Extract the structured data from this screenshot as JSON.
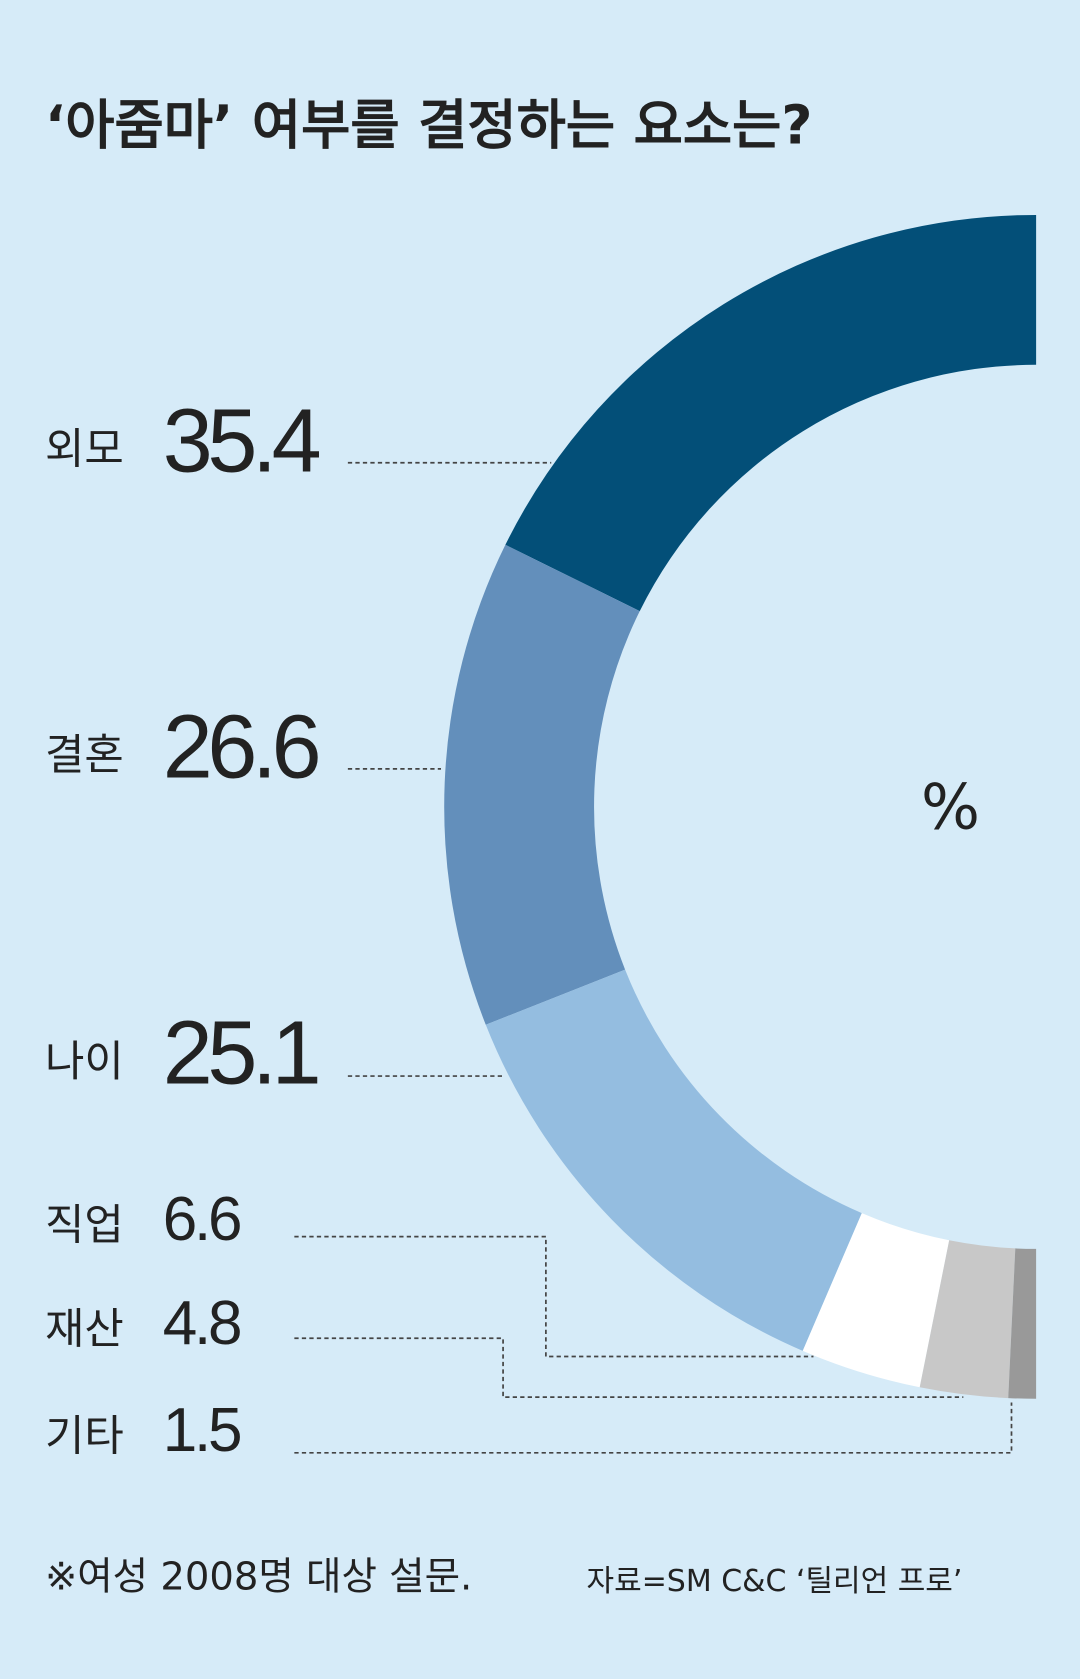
{
  "chart_data": {
    "type": "donut",
    "title": "‘아줌마’ 여부를 결정하는 요소는?",
    "unit": "%",
    "categories": [
      "외모",
      "결혼",
      "나이",
      "직업",
      "재산",
      "기타"
    ],
    "values": [
      35.4,
      26.6,
      25.1,
      6.6,
      4.8,
      1.5
    ],
    "colors": [
      "#034f78",
      "#638fbb",
      "#94bde0",
      "#ffffff",
      "#c8c8c8",
      "#999999"
    ],
    "note": "※여성 2008명 대상 설문.",
    "source": "자료=SM C&C ‘틸리언 프로’"
  }
}
